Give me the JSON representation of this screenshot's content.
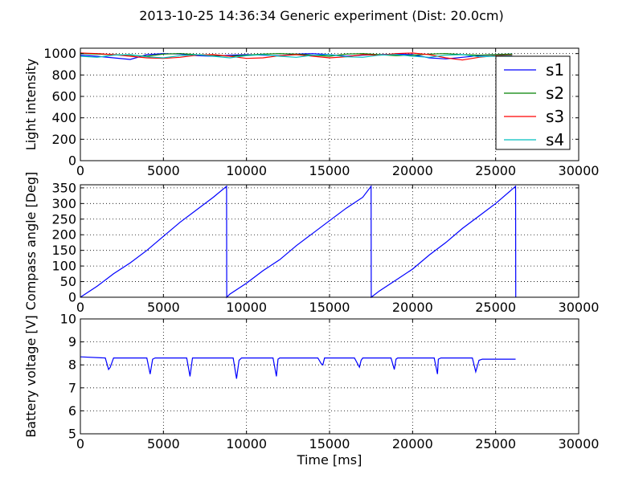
{
  "title": "2013-10-25 14:36:34 Generic experiment (Dist: 20.0cm)",
  "chart_data": [
    {
      "type": "line",
      "ylabel": "Light intensity",
      "xlabel": "",
      "xlim": [
        0,
        30000
      ],
      "ylim": [
        0,
        1050
      ],
      "xticks": [
        0,
        5000,
        10000,
        15000,
        20000,
        25000,
        30000
      ],
      "yticks": [
        0,
        200,
        400,
        600,
        800,
        1000
      ],
      "grid": true,
      "legend": "right",
      "series": [
        {
          "name": "s1",
          "color": "#0000ff",
          "x": [
            0,
            1000,
            2000,
            3000,
            4000,
            5000,
            6000,
            7000,
            8000,
            9000,
            10000,
            11000,
            12000,
            13000,
            14000,
            15000,
            16000,
            17000,
            18000,
            19000,
            20000,
            21000,
            22000,
            23000,
            24000,
            25000,
            26000
          ],
          "y": [
            985,
            975,
            960,
            945,
            990,
            1000,
            995,
            980,
            975,
            985,
            990,
            985,
            980,
            995,
            1000,
            990,
            975,
            985,
            990,
            995,
            990,
            960,
            950,
            965,
            980,
            990,
            995
          ]
        },
        {
          "name": "s2",
          "color": "#008000",
          "x": [
            0,
            1000,
            2000,
            3000,
            4000,
            5000,
            6000,
            7000,
            8000,
            9000,
            10000,
            11000,
            12000,
            13000,
            14000,
            15000,
            16000,
            17000,
            18000,
            19000,
            20000,
            21000,
            22000,
            23000,
            24000,
            25000,
            26000
          ],
          "y": [
            1000,
            995,
            990,
            985,
            975,
            995,
            1000,
            990,
            985,
            975,
            985,
            995,
            1000,
            995,
            985,
            975,
            995,
            1000,
            990,
            980,
            985,
            995,
            1000,
            990,
            985,
            990,
            995
          ]
        },
        {
          "name": "s3",
          "color": "#ff0000",
          "x": [
            0,
            1000,
            2000,
            3000,
            4000,
            5000,
            6000,
            7000,
            8000,
            9000,
            10000,
            11000,
            12000,
            13000,
            14000,
            15000,
            16000,
            17000,
            18000,
            19000,
            20000,
            21000,
            22000,
            23000,
            24000,
            25000,
            26000
          ],
          "y": [
            1005,
            1000,
            990,
            975,
            960,
            955,
            965,
            985,
            990,
            975,
            955,
            960,
            980,
            990,
            975,
            960,
            970,
            990,
            985,
            1000,
            1005,
            990,
            960,
            940,
            965,
            980,
            985
          ]
        },
        {
          "name": "s4",
          "color": "#00bfbf",
          "x": [
            0,
            1000,
            2000,
            3000,
            4000,
            5000,
            6000,
            7000,
            8000,
            9000,
            10000,
            11000,
            12000,
            13000,
            14000,
            15000,
            16000,
            17000,
            18000,
            19000,
            20000,
            21000,
            22000,
            23000,
            24000,
            25000,
            26000
          ],
          "y": [
            975,
            965,
            985,
            990,
            970,
            960,
            980,
            990,
            975,
            960,
            980,
            990,
            975,
            965,
            985,
            990,
            970,
            965,
            985,
            990,
            975,
            965,
            985,
            990,
            970,
            975,
            980
          ]
        }
      ]
    },
    {
      "type": "line",
      "ylabel": "Compass angle [Deg]",
      "xlabel": "",
      "xlim": [
        0,
        30000
      ],
      "ylim": [
        0,
        360
      ],
      "xticks": [
        0,
        5000,
        10000,
        15000,
        20000,
        25000,
        30000
      ],
      "yticks": [
        0,
        50,
        100,
        150,
        200,
        250,
        300,
        350
      ],
      "grid": true,
      "series": [
        {
          "name": "",
          "color": "#0000ff",
          "x": [
            0,
            1000,
            2000,
            3000,
            4000,
            5000,
            6000,
            7000,
            8000,
            8800,
            8810,
            9000,
            10000,
            11000,
            12000,
            13000,
            14000,
            15000,
            16000,
            17000,
            17500,
            17510,
            18000,
            19000,
            20000,
            21000,
            22000,
            23000,
            24000,
            25000,
            26200,
            26210
          ],
          "y": [
            0,
            35,
            75,
            110,
            150,
            195,
            240,
            280,
            320,
            355,
            0,
            10,
            45,
            85,
            120,
            165,
            205,
            245,
            285,
            320,
            355,
            0,
            20,
            55,
            90,
            135,
            175,
            220,
            260,
            300,
            355,
            0
          ]
        }
      ]
    },
    {
      "type": "line",
      "ylabel": "Battery voltage [V]",
      "xlabel": "Time [ms]",
      "xlim": [
        0,
        30000
      ],
      "ylim": [
        5,
        10
      ],
      "xticks": [
        0,
        5000,
        10000,
        15000,
        20000,
        25000,
        30000
      ],
      "yticks": [
        5,
        6,
        7,
        8,
        9,
        10
      ],
      "grid": true,
      "series": [
        {
          "name": "",
          "color": "#0000ff",
          "x": [
            0,
            1500,
            1700,
            1800,
            2000,
            4000,
            4200,
            4350,
            4500,
            6400,
            6600,
            6750,
            6900,
            9200,
            9400,
            9550,
            9700,
            11600,
            11800,
            11900,
            12000,
            14300,
            14500,
            14600,
            14700,
            16500,
            16800,
            16900,
            17000,
            18700,
            18900,
            19000,
            19100,
            21300,
            21500,
            21550,
            21700,
            23600,
            23800,
            24000,
            24200,
            26200
          ],
          "y": [
            8.35,
            8.3,
            7.8,
            7.9,
            8.3,
            8.3,
            7.6,
            8.25,
            8.3,
            8.3,
            7.5,
            8.3,
            8.3,
            8.3,
            7.4,
            8.2,
            8.3,
            8.3,
            7.5,
            8.25,
            8.3,
            8.3,
            8.05,
            8.0,
            8.3,
            8.3,
            7.9,
            8.2,
            8.3,
            8.3,
            7.8,
            8.25,
            8.3,
            8.3,
            7.6,
            8.25,
            8.3,
            8.3,
            7.7,
            8.2,
            8.25,
            8.25
          ]
        }
      ]
    }
  ]
}
